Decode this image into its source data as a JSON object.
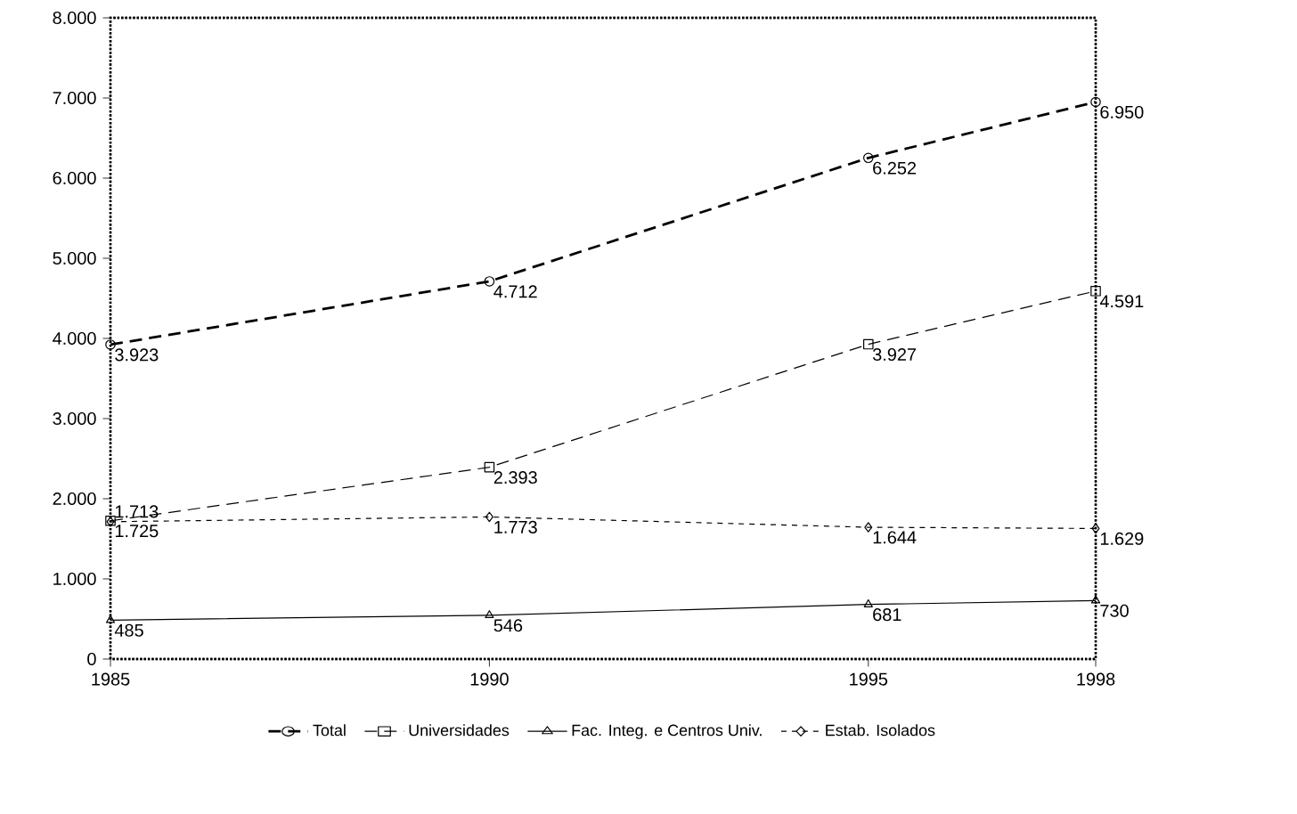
{
  "chart_data": {
    "type": "line",
    "x": [
      1985,
      1990,
      1995,
      1998
    ],
    "xlim": [
      1985,
      1998
    ],
    "xticks": [
      1985,
      1990,
      1995,
      1998
    ],
    "ylim": [
      0,
      8000
    ],
    "yticks": [
      0,
      {
        "value": 1000,
        "label": "1.000"
      },
      {
        "value": 2000,
        "label": "2.000"
      },
      {
        "value": 3000,
        "label": "3.000"
      },
      {
        "value": 4000,
        "label": "4.000"
      },
      {
        "value": 5000,
        "label": "5.000"
      },
      {
        "value": 6000,
        "label": "6.000"
      },
      {
        "value": 7000,
        "label": "7.000"
      },
      {
        "value": 8000,
        "label": "8.000"
      }
    ],
    "grid": false,
    "legend": "bottom",
    "series": [
      {
        "name": "Total",
        "color": "#000000",
        "marker": "circle",
        "line_style": "dashed",
        "values": [
          3923,
          4712,
          6252,
          6950
        ],
        "value_labels": [
          "3.923",
          "4.712",
          "6.252",
          "6.950"
        ]
      },
      {
        "name": "Universidades",
        "color": "#000000",
        "marker": "square",
        "line_style": "dashed",
        "values": [
          1725,
          2393,
          3927,
          4591
        ],
        "value_labels": [
          "1.725",
          "2.393",
          "3.927",
          "4.591"
        ]
      },
      {
        "name": "Fac. Integ. e Centros Univ.",
        "color": "#000000",
        "marker": "triangle",
        "line_style": "solid",
        "values": [
          485,
          546,
          681,
          730
        ],
        "value_labels": [
          "485",
          "546",
          "681",
          "730"
        ]
      },
      {
        "name": "Estab. Isolados",
        "color": "#000000",
        "marker": "diamond",
        "line_style": "dotted",
        "values": [
          1713,
          1773,
          1644,
          1629
        ],
        "value_labels": [
          "1.713",
          "1.773",
          "1.644",
          "1.629"
        ]
      }
    ]
  }
}
